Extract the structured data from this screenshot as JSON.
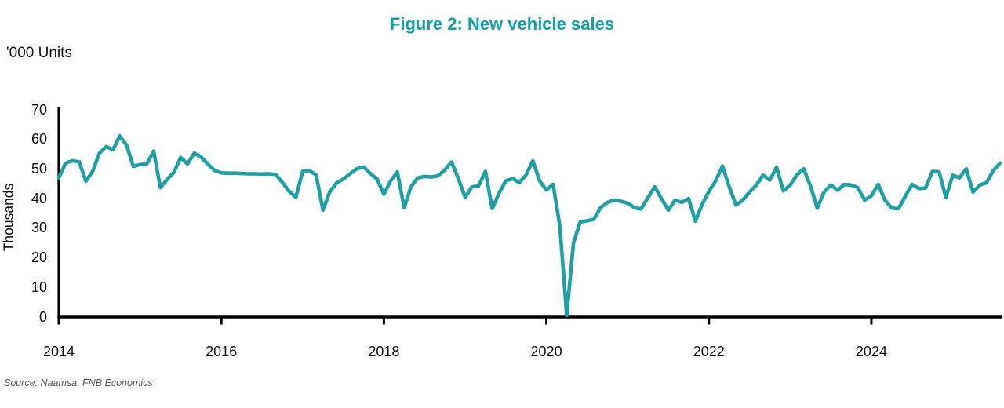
{
  "title": "Figure 2: New vehicle sales",
  "units_label": "'000 Units",
  "y_axis_label": "Thousands",
  "source": "Source: Naamsa, FNB Economics",
  "colors": {
    "title_teal": "#10A2A5",
    "line_teal": "#20A0A1",
    "axis_black": "#000000",
    "source_gray": "#57585A"
  },
  "chart_data": {
    "type": "line",
    "title": "Figure 2: New vehicle sales",
    "ylabel": "Thousands",
    "units": "'000 Units",
    "ylim": [
      0,
      70
    ],
    "y_ticks": [
      0,
      10,
      20,
      30,
      40,
      50,
      60,
      70
    ],
    "x_ticks": [
      "2014",
      "2016",
      "2018",
      "2020",
      "2022",
      "2024"
    ],
    "x_start": "2014-01",
    "x_end": "2025-08",
    "frequency": "monthly",
    "grid": false,
    "legend": "none",
    "series": [
      {
        "name": "New vehicle sales ('000 units)",
        "values": [
          47.0,
          52.0,
          52.8,
          52.4,
          45.9,
          49.3,
          55.4,
          57.6,
          56.5,
          61.2,
          58.1,
          50.9,
          51.5,
          51.7,
          56.1,
          43.7,
          46.5,
          48.9,
          53.9,
          51.7,
          55.4,
          54.1,
          51.7,
          49.5,
          48.7,
          48.6,
          48.6,
          48.5,
          48.4,
          48.4,
          48.3,
          48.4,
          48.2,
          45.5,
          42.5,
          40.4,
          49.2,
          49.5,
          48.0,
          36.1,
          42.2,
          45.3,
          46.6,
          48.4,
          50.1,
          50.7,
          48.5,
          46.6,
          41.5,
          46.0,
          49.0,
          36.9,
          44.0,
          47.0,
          47.5,
          47.3,
          47.7,
          49.7,
          52.4,
          46.8,
          40.4,
          44.0,
          44.3,
          49.2,
          36.6,
          41.8,
          46.0,
          46.8,
          45.4,
          48.0,
          52.8,
          46.0,
          42.9,
          44.8,
          30.6,
          0.5,
          25.0,
          32.1,
          32.5,
          33.0,
          36.9,
          38.7,
          39.5,
          39.1,
          38.5,
          36.9,
          36.5,
          40.4,
          44.0,
          40.0,
          36.1,
          39.5,
          38.7,
          40.0,
          32.4,
          38.0,
          42.5,
          46.0,
          51.0,
          44.0,
          37.8,
          39.5,
          42.2,
          44.6,
          47.9,
          46.3,
          50.6,
          42.6,
          44.6,
          48.0,
          50.1,
          44.3,
          36.8,
          42.2,
          44.6,
          42.8,
          44.8,
          44.6,
          43.7,
          39.5,
          41.0,
          44.8,
          39.5,
          36.8,
          36.6,
          40.8,
          44.8,
          43.4,
          43.6,
          49.2,
          49.0,
          40.4,
          47.9,
          47.0,
          50.1,
          42.2,
          44.6,
          45.4,
          49.5,
          52.0
        ]
      }
    ]
  }
}
